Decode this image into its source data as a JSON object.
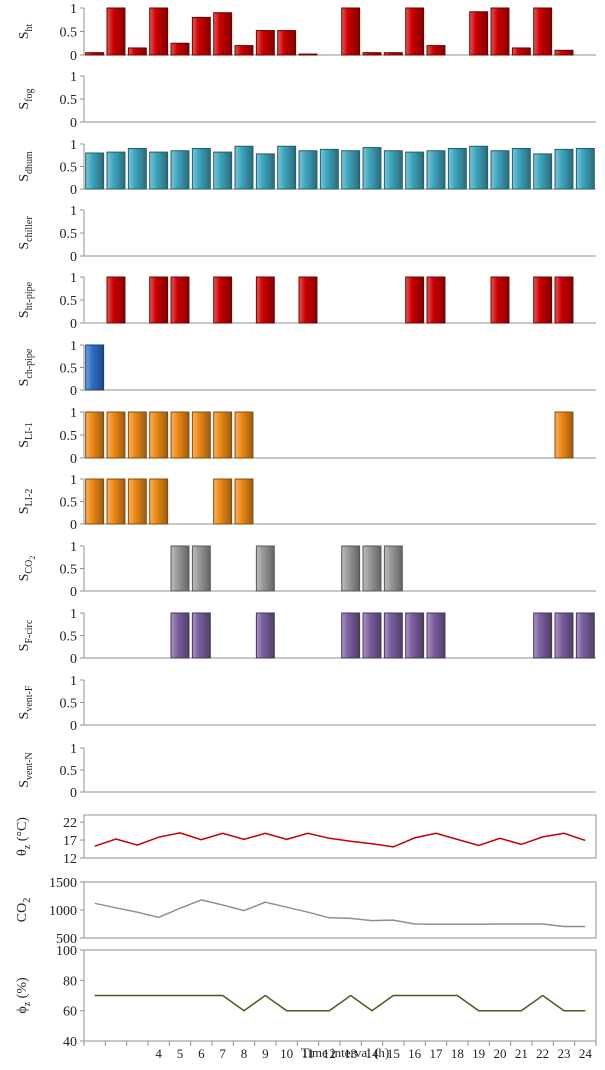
{
  "colors": {
    "red": "#cc0000",
    "teal": "#3fa6bf",
    "blue": "#2f6fc8",
    "orange": "#ef8a16",
    "gray": "#9a9a9a",
    "purple": "#7d5fa0",
    "line_red": "#c00000",
    "line_gray": "#909090",
    "line_olive": "#4a5a1e",
    "axis": "#909090"
  },
  "chart_data": [
    {
      "type": "bar",
      "ylabel_main": "S",
      "ylabel_sub": "ht",
      "ylim": [
        0,
        1
      ],
      "yticks": [
        "0",
        "0.5",
        "1"
      ],
      "color": "red",
      "values": [
        0.05,
        1,
        0.15,
        1,
        0.25,
        0.8,
        0.9,
        0.2,
        0.52,
        0.52,
        0.02,
        0,
        1,
        0.05,
        0.05,
        1,
        0.2,
        0,
        0.92,
        1,
        0.15,
        1,
        0.1,
        0
      ]
    },
    {
      "type": "bar",
      "ylabel_main": "S",
      "ylabel_sub": "fog",
      "ylim": [
        0,
        1
      ],
      "yticks": [
        "0",
        "0.5",
        "1"
      ],
      "color": "red",
      "values": [
        0,
        0,
        0,
        0,
        0,
        0,
        0,
        0,
        0,
        0,
        0,
        0,
        0,
        0,
        0,
        0,
        0,
        0,
        0,
        0,
        0,
        0,
        0,
        0
      ]
    },
    {
      "type": "bar",
      "ylabel_main": "S",
      "ylabel_sub": "dhum",
      "ylim": [
        0,
        1
      ],
      "yticks": [
        "0",
        "0.5",
        "1"
      ],
      "color": "teal",
      "values": [
        0.8,
        0.82,
        0.9,
        0.82,
        0.85,
        0.9,
        0.82,
        0.95,
        0.78,
        0.95,
        0.85,
        0.88,
        0.85,
        0.92,
        0.85,
        0.82,
        0.85,
        0.9,
        0.95,
        0.85,
        0.9,
        0.78,
        0.88,
        0.9
      ]
    },
    {
      "type": "bar",
      "ylabel_main": "S",
      "ylabel_sub": "chiller",
      "ylim": [
        0,
        1
      ],
      "yticks": [
        "0",
        "0.5",
        "1"
      ],
      "color": "teal",
      "values": [
        0,
        0,
        0,
        0,
        0,
        0,
        0,
        0,
        0,
        0,
        0,
        0,
        0,
        0,
        0,
        0,
        0,
        0,
        0,
        0,
        0,
        0,
        0,
        0
      ]
    },
    {
      "type": "bar",
      "ylabel_main": "S",
      "ylabel_sub": "ht-pipe",
      "ylim": [
        0,
        1
      ],
      "yticks": [
        "0",
        "0.5",
        "1"
      ],
      "color": "red",
      "values": [
        0,
        1,
        0,
        1,
        1,
        0,
        1,
        0,
        1,
        0,
        1,
        0,
        0,
        0,
        0,
        1,
        1,
        0,
        0,
        1,
        0,
        1,
        1,
        0
      ]
    },
    {
      "type": "bar",
      "ylabel_main": "S",
      "ylabel_sub": "ch-pipe",
      "ylim": [
        0,
        1
      ],
      "yticks": [
        "0",
        "0.5",
        "1"
      ],
      "color": "blue",
      "values": [
        1,
        0,
        0,
        0,
        0,
        0,
        0,
        0,
        0,
        0,
        0,
        0,
        0,
        0,
        0,
        0,
        0,
        0,
        0,
        0,
        0,
        0,
        0,
        0
      ]
    },
    {
      "type": "bar",
      "ylabel_main": "S",
      "ylabel_sub": "LI-1",
      "ylim": [
        0,
        1
      ],
      "yticks": [
        "0",
        "0.5",
        "1"
      ],
      "color": "orange",
      "values": [
        1,
        1,
        1,
        1,
        1,
        1,
        1,
        1,
        0,
        0,
        0,
        0,
        0,
        0,
        0,
        0,
        0,
        0,
        0,
        0,
        0,
        0,
        1,
        0
      ]
    },
    {
      "type": "bar",
      "ylabel_main": "S",
      "ylabel_sub": "LI-2",
      "ylim": [
        0,
        1
      ],
      "yticks": [
        "0",
        "0.5",
        "1"
      ],
      "color": "orange",
      "values": [
        1,
        1,
        1,
        1,
        0,
        0,
        1,
        1,
        0,
        0,
        0,
        0,
        0,
        0,
        0,
        0,
        0,
        0,
        0,
        0,
        0,
        0,
        0,
        0
      ]
    },
    {
      "type": "bar",
      "ylabel_main": "S",
      "ylabel_sub": "CO",
      "ylabel_sub2": "2",
      "ylim": [
        0,
        1
      ],
      "yticks": [
        "0",
        "0.5",
        "1"
      ],
      "color": "gray",
      "values": [
        0,
        0,
        0,
        0,
        1,
        1,
        0,
        0,
        1,
        0,
        0,
        0,
        1,
        1,
        1,
        0,
        0,
        0,
        0,
        0,
        0,
        0,
        0,
        0
      ]
    },
    {
      "type": "bar",
      "ylabel_main": "S",
      "ylabel_sub": "F-circ",
      "ylim": [
        0,
        1
      ],
      "yticks": [
        "0",
        "0.5",
        "1"
      ],
      "color": "purple",
      "values": [
        0,
        0,
        0,
        0,
        1,
        1,
        0,
        0,
        1,
        0,
        0,
        0,
        1,
        1,
        1,
        1,
        1,
        0,
        0,
        0,
        0,
        1,
        1,
        1
      ]
    },
    {
      "type": "bar",
      "ylabel_main": "S",
      "ylabel_sub": "vent-F",
      "ylim": [
        0,
        1
      ],
      "yticks": [
        "0",
        "0.5",
        "1"
      ],
      "color": "purple",
      "values": [
        0,
        0,
        0,
        0,
        0,
        0,
        0,
        0,
        0,
        0,
        0,
        0,
        0,
        0,
        0,
        0,
        0,
        0,
        0,
        0,
        0,
        0,
        0,
        0
      ]
    },
    {
      "type": "bar",
      "ylabel_main": "S",
      "ylabel_sub": "vent-N",
      "ylim": [
        0,
        1
      ],
      "yticks": [
        "0",
        "0.5",
        "1"
      ],
      "color": "purple",
      "values": [
        0,
        0,
        0,
        0,
        0,
        0,
        0,
        0,
        0,
        0,
        0,
        0,
        0,
        0,
        0,
        0,
        0,
        0,
        0,
        0,
        0,
        0,
        0,
        0
      ]
    },
    {
      "type": "line",
      "ylabel_main": "θ",
      "ylabel_sub": "z",
      "ylabel_suffix": " (°C)",
      "ylim": [
        12,
        24
      ],
      "ytick_values": [
        12,
        17,
        22
      ],
      "yticks": [
        "12",
        "17",
        "22"
      ],
      "color": "line_red",
      "values": [
        15.3,
        17.3,
        15.6,
        17.8,
        19.0,
        17.1,
        18.9,
        17.2,
        18.9,
        17.2,
        18.9,
        17.5,
        16.7,
        16.0,
        15.1,
        17.6,
        18.9,
        17.2,
        15.5,
        17.5,
        15.8,
        17.9,
        18.9,
        16.9
      ]
    },
    {
      "type": "line",
      "ylabel_main": "CO",
      "ylabel_sub": "2",
      "ylabel_suffix": "",
      "ylim": [
        500,
        1500
      ],
      "ytick_values": [
        500,
        1000,
        1500
      ],
      "yticks": [
        "500",
        "1000",
        "1500"
      ],
      "color": "line_gray",
      "values": [
        1120,
        1040,
        960,
        870,
        1030,
        1180,
        1090,
        990,
        1140,
        1050,
        960,
        860,
        850,
        810,
        820,
        750,
        745,
        745,
        745,
        750,
        750,
        750,
        705,
        705
      ]
    },
    {
      "type": "line",
      "ylabel_main": "ϕ",
      "ylabel_sub": "z",
      "ylabel_suffix": " (%)",
      "ylim": [
        40,
        100
      ],
      "ytick_values": [
        40,
        60,
        80,
        100
      ],
      "yticks": [
        "40",
        "60",
        "80",
        "100"
      ],
      "color": "line_olive",
      "values": [
        70,
        70,
        70,
        70,
        70,
        70,
        70,
        60,
        70,
        60,
        60,
        60,
        70,
        60,
        70,
        70,
        70,
        70,
        60,
        60,
        60,
        70,
        60,
        60
      ]
    }
  ],
  "x_axis": {
    "ticks": [
      "",
      "",
      "",
      "4",
      "5",
      "6",
      "7",
      "8",
      "9",
      "10",
      "11",
      "12",
      "13",
      "14",
      "15",
      "16",
      "17",
      "18",
      "19",
      "20",
      "21",
      "22",
      "23",
      "24"
    ],
    "xlabel": "Time interval (h)"
  }
}
